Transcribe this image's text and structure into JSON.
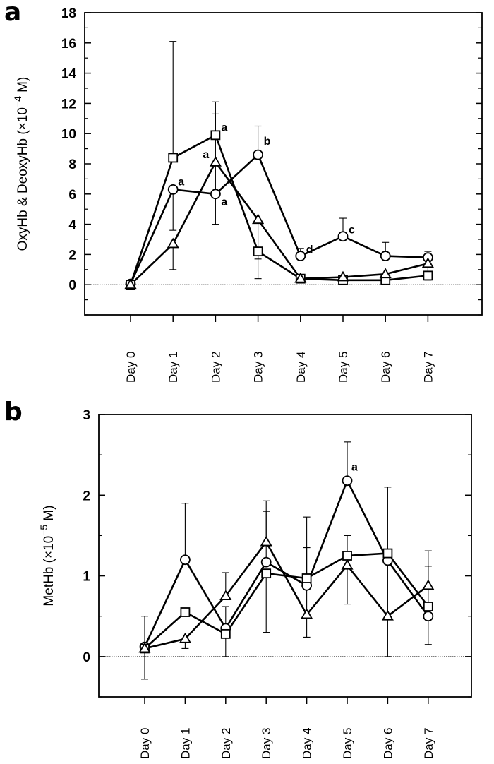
{
  "panels": [
    {
      "letter": "a"
    },
    {
      "letter": "b"
    }
  ],
  "chart_data": [
    {
      "type": "line",
      "categories": [
        "Day 0",
        "Day 1",
        "Day 2",
        "Day 3",
        "Day 4",
        "Day 5",
        "Day 6",
        "Day 7"
      ],
      "ylabel_main": "OxyHb & DeoxyHb (×10",
      "ylabel_exp": "−4",
      "ylabel_unit": " M)",
      "ylim": [
        -2,
        18
      ],
      "yticks": [
        0,
        2,
        4,
        6,
        8,
        10,
        12,
        14,
        16,
        18
      ],
      "series": [
        {
          "marker": "circle",
          "values": [
            0.05,
            6.3,
            6.0,
            8.6,
            1.9,
            3.2,
            1.9,
            1.8
          ],
          "err_low": [
            null,
            3.6,
            4.0,
            null,
            null,
            null,
            null,
            1.6
          ],
          "err_high": [
            null,
            null,
            11.3,
            10.5,
            2.4,
            4.4,
            2.8,
            2.2
          ]
        },
        {
          "marker": "square",
          "values": [
            0.0,
            8.4,
            9.9,
            2.2,
            0.4,
            0.3,
            0.3,
            0.6
          ],
          "err_low": [
            null,
            null,
            null,
            0.4,
            null,
            null,
            null,
            null
          ],
          "err_high": [
            null,
            16.1,
            12.1,
            null,
            null,
            null,
            null,
            null
          ]
        },
        {
          "marker": "triangle",
          "values": [
            0.0,
            2.7,
            8.1,
            4.3,
            0.4,
            0.5,
            0.7,
            1.4
          ],
          "err_low": [
            null,
            1.0,
            null,
            1.7,
            null,
            null,
            null,
            0.3
          ],
          "err_high": [
            null,
            null,
            null,
            null,
            null,
            null,
            null,
            null
          ]
        }
      ],
      "annotations": [
        {
          "text": "a",
          "x": 1,
          "y": 6.3
        },
        {
          "text": "a",
          "x": 2,
          "y": 9.9
        },
        {
          "text": "a",
          "x": 2,
          "y": 8.1
        },
        {
          "text": "a",
          "x": 2,
          "y": 6.0
        },
        {
          "text": "b",
          "x": 3,
          "y": 8.6
        },
        {
          "text": "d",
          "x": 4,
          "y": 1.9
        },
        {
          "text": "c",
          "x": 5,
          "y": 3.2
        }
      ],
      "zero_line": true
    },
    {
      "type": "line",
      "categories": [
        "Day 0",
        "Day 1",
        "Day 2",
        "Day 3",
        "Day 4",
        "Day 5",
        "Day 6",
        "Day 7"
      ],
      "ylabel_main": "MetHb (×10",
      "ylabel_exp": "−5",
      "ylabel_unit": " M)",
      "ylim": [
        -0.5,
        3
      ],
      "yticks": [
        0,
        1,
        2,
        3
      ],
      "series": [
        {
          "marker": "circle",
          "values": [
            0.12,
            1.2,
            0.35,
            1.17,
            0.88,
            2.18,
            1.19,
            0.5
          ],
          "err_low": [
            -0.28,
            null,
            null,
            null,
            null,
            null,
            null,
            null
          ],
          "err_high": [
            0.5,
            1.9,
            0.62,
            1.8,
            1.73,
            2.66,
            2.1,
            1.12
          ]
        },
        {
          "marker": "square",
          "values": [
            0.1,
            0.55,
            0.28,
            1.03,
            0.97,
            1.25,
            1.28,
            0.62
          ],
          "err_low": [
            null,
            null,
            0.0,
            0.3,
            null,
            0.65,
            0.0,
            0.15
          ],
          "err_high": [
            null,
            null,
            null,
            null,
            null,
            1.5,
            null,
            null
          ]
        },
        {
          "marker": "triangle",
          "values": [
            0.1,
            0.22,
            0.75,
            1.42,
            0.52,
            1.13,
            0.5,
            0.88
          ],
          "err_low": [
            null,
            0.1,
            null,
            null,
            0.24,
            null,
            null,
            null
          ],
          "err_high": [
            null,
            null,
            1.04,
            1.93,
            1.35,
            null,
            null,
            1.31
          ]
        }
      ],
      "annotations": [
        {
          "text": "a",
          "x": 5,
          "y": 2.18
        }
      ],
      "zero_line": true
    }
  ]
}
